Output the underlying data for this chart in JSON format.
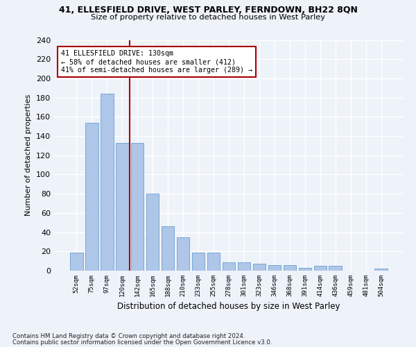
{
  "title1": "41, ELLESFIELD DRIVE, WEST PARLEY, FERNDOWN, BH22 8QN",
  "title2": "Size of property relative to detached houses in West Parley",
  "xlabel": "Distribution of detached houses by size in West Parley",
  "ylabel": "Number of detached properties",
  "categories": [
    "52sqm",
    "75sqm",
    "97sqm",
    "120sqm",
    "142sqm",
    "165sqm",
    "188sqm",
    "210sqm",
    "233sqm",
    "255sqm",
    "278sqm",
    "301sqm",
    "323sqm",
    "346sqm",
    "368sqm",
    "391sqm",
    "414sqm",
    "436sqm",
    "459sqm",
    "481sqm",
    "504sqm"
  ],
  "values": [
    19,
    154,
    184,
    133,
    133,
    80,
    46,
    35,
    19,
    19,
    9,
    9,
    7,
    6,
    6,
    3,
    5,
    5,
    0,
    0,
    2
  ],
  "bar_color": "#aec6e8",
  "bar_edge_color": "#6a9fd0",
  "vline_x": 3.5,
  "vline_color": "#aa0000",
  "annotation_title": "41 ELLESFIELD DRIVE: 130sqm",
  "annotation_line1": "← 58% of detached houses are smaller (412)",
  "annotation_line2": "41% of semi-detached houses are larger (289) →",
  "annotation_box_color": "#ffffff",
  "annotation_box_edge": "#aa0000",
  "footer1": "Contains HM Land Registry data © Crown copyright and database right 2024.",
  "footer2": "Contains public sector information licensed under the Open Government Licence v3.0.",
  "bg_color": "#eef2f9",
  "grid_color": "#ffffff",
  "ylim": [
    0,
    240
  ],
  "yticks": [
    0,
    20,
    40,
    60,
    80,
    100,
    120,
    140,
    160,
    180,
    200,
    220,
    240
  ]
}
